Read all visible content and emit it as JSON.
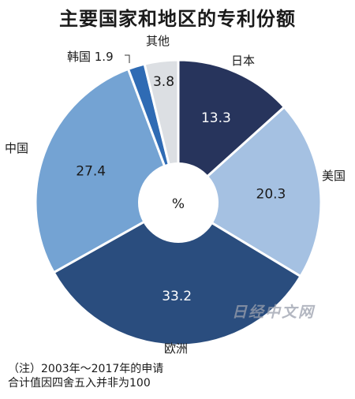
{
  "chart_data": {
    "type": "pie",
    "title": "主要国家和地区的专利份额",
    "center_label": "%",
    "slices": [
      {
        "label": "日本",
        "value": 13.3,
        "value_text": "13.3",
        "color": "#27345c",
        "text_color": "#ffffff"
      },
      {
        "label": "美国",
        "value": 20.3,
        "value_text": "20.3",
        "color": "#a5c1e2",
        "text_color": "#1a1a1a"
      },
      {
        "label": "欧洲",
        "value": 33.2,
        "value_text": "33.2",
        "color": "#2a4d7e",
        "text_color": "#ffffff"
      },
      {
        "label": "中国",
        "value": 27.4,
        "value_text": "27.4",
        "color": "#74a3d3",
        "text_color": "#1a1a1a"
      },
      {
        "label": "韩国",
        "value": 1.9,
        "value_text": "1.9",
        "color": "#2f6bb4",
        "text_color": "#1a1a1a"
      },
      {
        "label": "其他",
        "value": 3.8,
        "value_text": "3.8",
        "color": "#dcdfe3",
        "text_color": "#1a1a1a"
      }
    ],
    "korea_callout": "韩国 1.9"
  },
  "notes": {
    "line1": "（注）2003年～2017年的申请",
    "line2": "合计值因四舍五入并非为100"
  },
  "watermark": "日经中文网"
}
